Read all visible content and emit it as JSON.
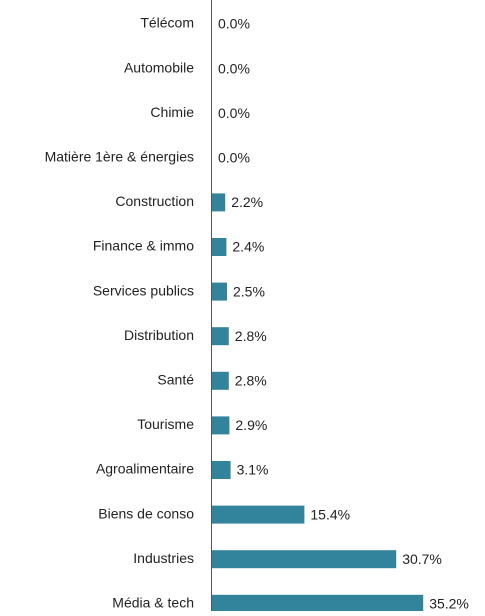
{
  "chart_data": {
    "type": "bar",
    "orientation": "horizontal",
    "categories": [
      "Télécom",
      "Automobile",
      "Chimie",
      "Matière 1ère & énergies",
      "Construction",
      "Finance & immo",
      "Services publics",
      "Distribution",
      "Santé",
      "Tourisme",
      "Agroalimentaire",
      "Biens de conso",
      "Industries",
      "Média & tech"
    ],
    "values": [
      0.0,
      0.0,
      0.0,
      0.0,
      2.2,
      2.4,
      2.5,
      2.8,
      2.8,
      2.9,
      3.1,
      15.4,
      30.7,
      35.2
    ],
    "value_labels": [
      "0.0%",
      "0.0%",
      "0.0%",
      "0.0%",
      "2.2%",
      "2.4%",
      "2.5%",
      "2.8%",
      "2.8%",
      "2.9%",
      "3.1%",
      "15.4%",
      "30.7%",
      "35.2%"
    ],
    "title": "",
    "xlabel": "",
    "ylabel": "",
    "xlim": [
      0,
      40
    ],
    "grid": false,
    "legend": "none",
    "bar_color": "#31849b",
    "axis_color": "#555555",
    "text_color": "#222222"
  }
}
